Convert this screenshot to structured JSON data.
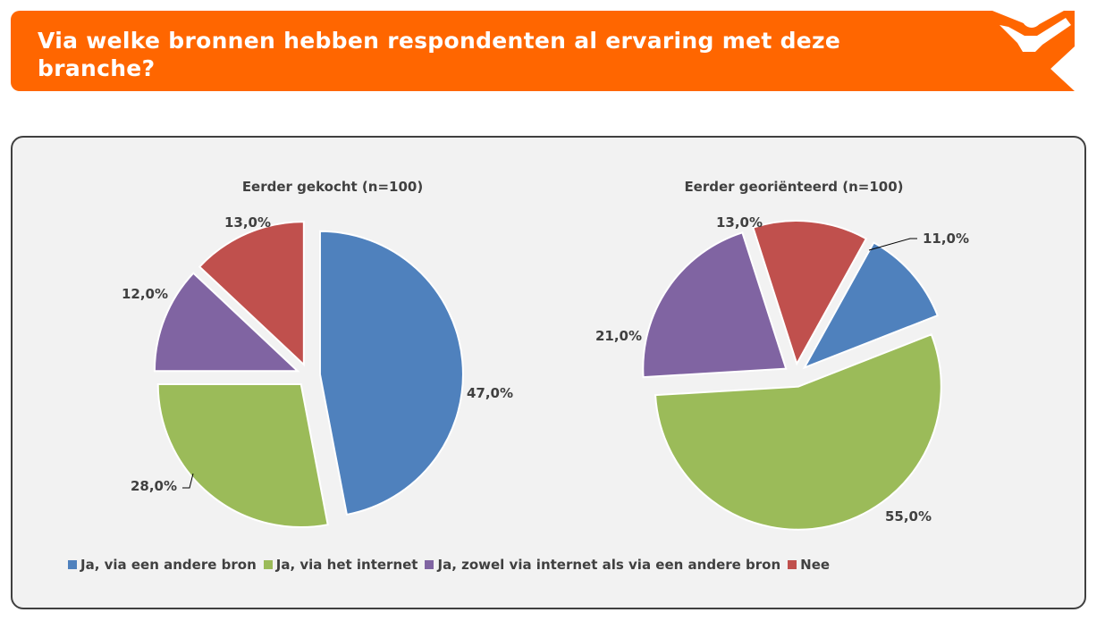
{
  "header": {
    "title": "Via welke bronnen hebben respondenten al ervaring met deze branche?",
    "accent_color": "#ff6600",
    "logo_icon": "person-cheering-icon"
  },
  "chart_data": [
    {
      "type": "pie",
      "title": "Eerder gekocht (n=100)",
      "categories": [
        "Ja, via een andere bron",
        "Ja, via het internet",
        "Ja, zowel via internet als via een andere bron",
        "Nee"
      ],
      "values": [
        47.0,
        28.0,
        12.0,
        13.0
      ],
      "labels": [
        "47,0%",
        "28,0%",
        "12,0%",
        "13,0%"
      ],
      "colors": [
        "#4f81bd",
        "#9bbb59",
        "#8064a2",
        "#c0504d"
      ]
    },
    {
      "type": "pie",
      "title": "Eerder georiënteerd (n=100)",
      "categories": [
        "Ja, via een andere bron",
        "Ja, via het internet",
        "Ja, zowel via internet als via een andere bron",
        "Nee"
      ],
      "values": [
        11.0,
        55.0,
        21.0,
        13.0
      ],
      "labels": [
        "11,0%",
        "55,0%",
        "21,0%",
        "13,0%"
      ],
      "colors": [
        "#4f81bd",
        "#9bbb59",
        "#8064a2",
        "#c0504d"
      ]
    }
  ],
  "legend": {
    "placement": "bottom",
    "items": [
      {
        "label": "Ja, via een andere bron",
        "color": "#4f81bd"
      },
      {
        "label": "Ja, via het internet",
        "color": "#9bbb59"
      },
      {
        "label": "Ja, zowel via internet als via een andere bron",
        "color": "#8064a2"
      },
      {
        "label": "Nee",
        "color": "#c0504d"
      }
    ]
  }
}
